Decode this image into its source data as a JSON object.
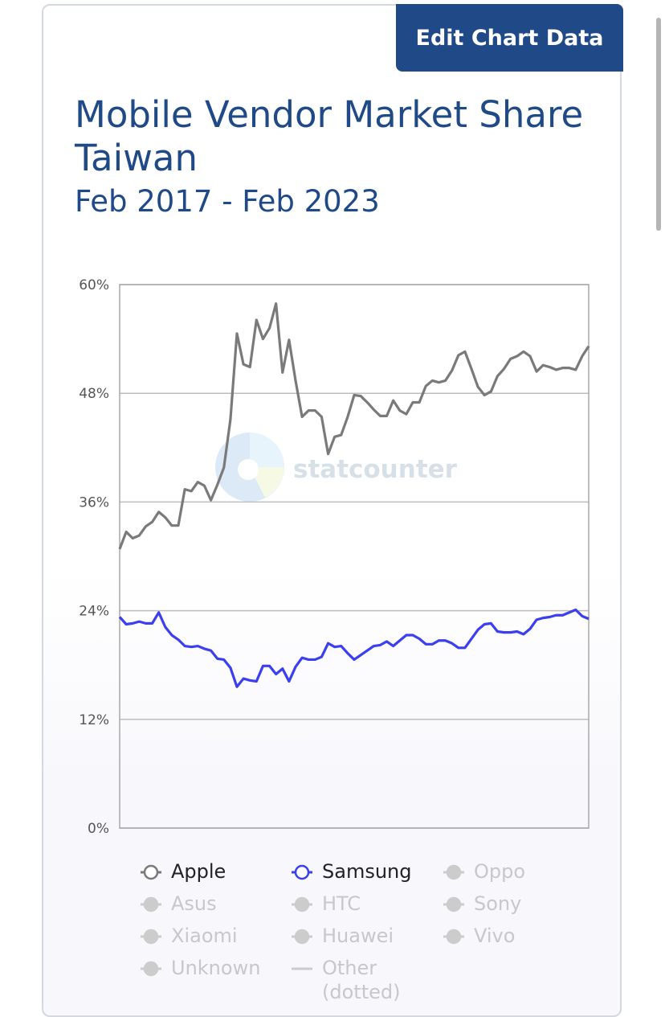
{
  "button": "Edit Chart Data",
  "chart_data": {
    "type": "line",
    "title": "Mobile Vendor Market Share Taiwan",
    "subtitle": "Feb 2017 - Feb 2023",
    "watermark": "statcounter",
    "ylim": [
      0,
      60
    ],
    "yticks": [
      {
        "value": 0,
        "label": "0%"
      },
      {
        "value": 12,
        "label": "12%"
      },
      {
        "value": 24,
        "label": "24%"
      },
      {
        "value": 36,
        "label": "36%"
      },
      {
        "value": 48,
        "label": "48%"
      },
      {
        "value": 60,
        "label": "60%"
      }
    ],
    "grid": true,
    "series": [
      {
        "name": "Apple",
        "color": "#7a7a7a",
        "values": [
          30.8,
          32.7,
          32.0,
          32.3,
          33.3,
          33.8,
          34.9,
          34.3,
          33.4,
          33.4,
          37.4,
          37.2,
          38.2,
          37.8,
          36.2,
          37.9,
          39.8,
          45.1,
          54.6,
          51.2,
          50.9,
          56.1,
          54.0,
          55.2,
          57.9,
          50.3,
          53.9,
          49.4,
          45.4,
          46.1,
          46.1,
          45.4,
          41.3,
          43.2,
          43.4,
          45.4,
          47.8,
          47.7,
          47.0,
          46.2,
          45.5,
          45.5,
          47.2,
          46.1,
          45.7,
          47.0,
          47.0,
          48.8,
          49.4,
          49.2,
          49.4,
          50.5,
          52.2,
          52.6,
          50.7,
          48.7,
          47.8,
          48.2,
          49.9,
          50.7,
          51.8,
          52.1,
          52.6,
          52.1,
          50.4,
          51.1,
          50.9,
          50.6,
          50.8,
          50.8,
          50.6,
          52.1,
          53.2
        ]
      },
      {
        "name": "Samsung",
        "color": "#3b3ff0",
        "values": [
          23.3,
          22.5,
          22.6,
          22.8,
          22.6,
          22.6,
          23.8,
          22.2,
          21.3,
          20.8,
          20.1,
          20.0,
          20.1,
          19.8,
          19.6,
          18.7,
          18.6,
          17.7,
          15.6,
          16.5,
          16.3,
          16.2,
          17.9,
          17.9,
          17.0,
          17.6,
          16.2,
          17.8,
          18.8,
          18.6,
          18.6,
          18.9,
          20.4,
          20.0,
          20.1,
          19.3,
          18.6,
          19.1,
          19.6,
          20.1,
          20.2,
          20.6,
          20.1,
          20.7,
          21.3,
          21.3,
          20.9,
          20.3,
          20.3,
          20.7,
          20.7,
          20.4,
          19.9,
          19.9,
          20.9,
          21.9,
          22.5,
          22.6,
          21.7,
          21.6,
          21.6,
          21.7,
          21.4,
          22.0,
          23.0,
          23.2,
          23.3,
          23.5,
          23.5,
          23.8,
          24.1,
          23.4,
          23.1
        ]
      }
    ],
    "hidden_series": [
      {
        "name": "Oppo"
      },
      {
        "name": "Asus"
      },
      {
        "name": "HTC"
      },
      {
        "name": "Sony"
      },
      {
        "name": "Xiaomi"
      },
      {
        "name": "Huawei"
      },
      {
        "name": "Vivo"
      },
      {
        "name": "Unknown"
      },
      {
        "name": "Other (dotted)",
        "marker": "dash"
      }
    ],
    "hidden_color": "#cccccc"
  }
}
